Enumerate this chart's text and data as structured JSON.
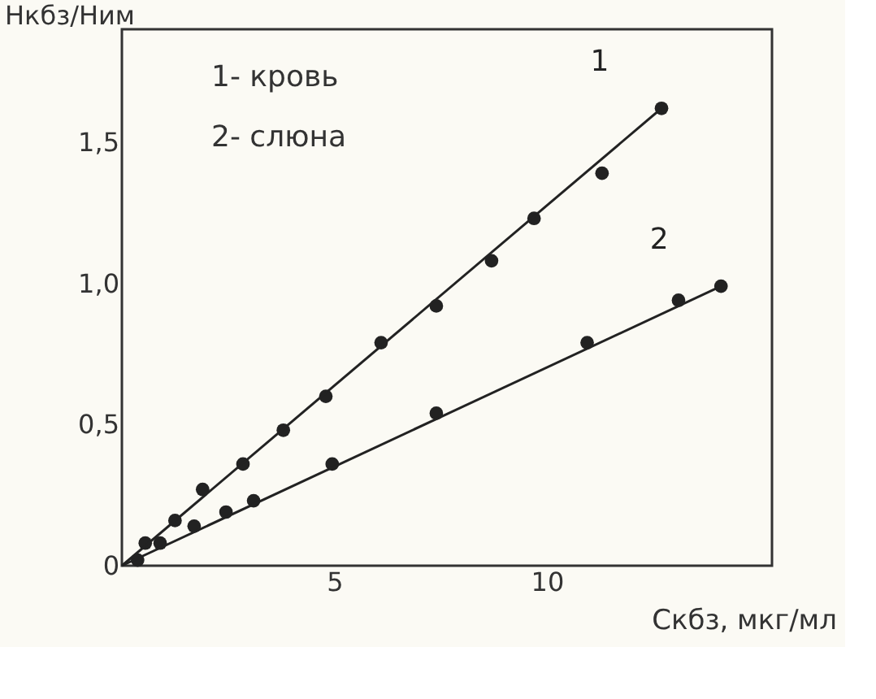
{
  "chart_data": {
    "type": "scatter",
    "xlabel": "Cкбз, мкг/мл",
    "ylabel": "Hкбз/Hим",
    "xlim": [
      0,
      15.3
    ],
    "ylim": [
      0,
      1.9
    ],
    "xticks": [
      5,
      10
    ],
    "yticks": [
      {
        "value": 0,
        "label": "0"
      },
      {
        "value": 0.5,
        "label": "0,5"
      },
      {
        "value": 1.0,
        "label": "1,0"
      },
      {
        "value": 1.5,
        "label": "1,5"
      }
    ],
    "grid": false,
    "series": [
      {
        "type": "scatter",
        "marker": "circle",
        "color": "#222222",
        "x": [
          0.55,
          1.25,
          1.9,
          2.85,
          3.8,
          4.8,
          6.1,
          7.4,
          8.7,
          9.7,
          11.3,
          12.7
        ],
        "values": [
          0.08,
          0.16,
          0.27,
          0.36,
          0.48,
          0.6,
          0.79,
          0.92,
          1.08,
          1.23,
          1.39,
          1.62
        ]
      },
      {
        "type": "line",
        "name": "1",
        "marker": "none",
        "color": "#222222",
        "x": [
          0,
          12.7
        ],
        "values": [
          0,
          1.62
        ]
      },
      {
        "type": "scatter",
        "marker": "circle",
        "color": "#222222",
        "x": [
          0.37,
          0.9,
          1.7,
          2.45,
          3.1,
          4.95,
          7.4,
          10.95,
          13.1,
          14.1
        ],
        "values": [
          0.02,
          0.08,
          0.14,
          0.19,
          0.23,
          0.36,
          0.54,
          0.79,
          0.94,
          0.99
        ]
      },
      {
        "type": "line",
        "name": "2",
        "marker": "none",
        "color": "#222222",
        "x": [
          0,
          14.1
        ],
        "values": [
          0,
          0.99
        ]
      }
    ],
    "annotations": [
      "1- кровь",
      "2- слюна"
    ]
  }
}
